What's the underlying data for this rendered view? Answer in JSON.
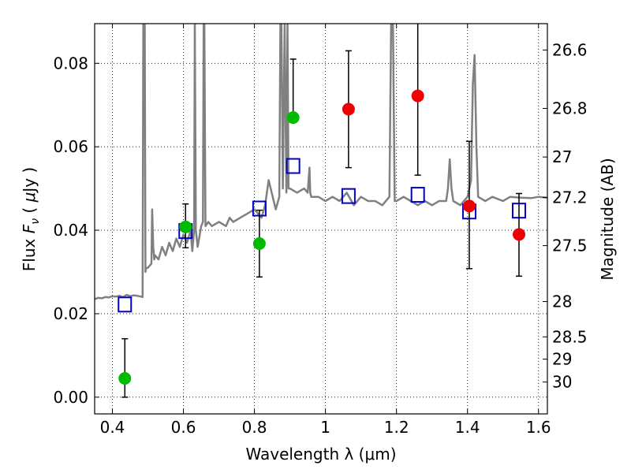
{
  "chart_data": {
    "type": "scatter",
    "xlabel": "Wavelength  λ (μm)",
    "ylabel": "Flux  F_ν  ( μJy )",
    "ylabel_right": "Magnitude (AB)",
    "xlim": [
      0.35,
      1.625
    ],
    "ylim": [
      -0.004,
      0.0895
    ],
    "x_ticks": [
      0.4,
      0.6,
      0.8,
      1.0,
      1.2,
      1.4,
      1.6
    ],
    "x_tick_labels": [
      "0.4",
      "0.6",
      "0.8",
      "1",
      "1.2",
      "1.4",
      "1.6"
    ],
    "y_ticks": [
      0.0,
      0.02,
      0.04,
      0.06,
      0.08
    ],
    "y_tick_labels": [
      "0.00",
      "0.02",
      "0.04",
      "0.06",
      "0.08"
    ],
    "right_ticks": [
      {
        "mag": 26.6,
        "label": "26.6"
      },
      {
        "mag": 26.8,
        "label": "26.8"
      },
      {
        "mag": 27.0,
        "label": "27"
      },
      {
        "mag": 27.2,
        "label": "27.2"
      },
      {
        "mag": 27.5,
        "label": "27.5"
      },
      {
        "mag": 28.0,
        "label": "28"
      },
      {
        "mag": 28.5,
        "label": "28.5"
      },
      {
        "mag": 29.0,
        "label": "29"
      },
      {
        "mag": 30.0,
        "label": "30"
      }
    ],
    "grid": true,
    "colors": {
      "spectrum": "#808080",
      "green": "#00bb00",
      "red": "#ee0000",
      "model": "#0000cc",
      "errorbar": "#000000"
    },
    "series": [
      {
        "kind": "photometry-green",
        "points": [
          {
            "x": 0.435,
            "y": 0.0045,
            "err_low": 0.0045,
            "err_high": 0.0095
          },
          {
            "x": 0.606,
            "y": 0.0408,
            "err_low": 0.005,
            "err_high": 0.0055
          },
          {
            "x": 0.814,
            "y": 0.0368,
            "err_low": 0.008,
            "err_high": 0.008
          },
          {
            "x": 0.909,
            "y": 0.067,
            "err_low": 0.0,
            "err_high": 0.014
          }
        ]
      },
      {
        "kind": "photometry-red",
        "points": [
          {
            "x": 1.065,
            "y": 0.069,
            "err_low": 0.014,
            "err_high": 0.014
          },
          {
            "x": 1.26,
            "y": 0.0722,
            "err_low": 0.019,
            "err_high": 0.018
          },
          {
            "x": 1.405,
            "y": 0.0458,
            "err_low": 0.015,
            "err_high": 0.0155
          },
          {
            "x": 1.545,
            "y": 0.039,
            "err_low": 0.01,
            "err_high": 0.0098
          }
        ]
      },
      {
        "kind": "model-photometry",
        "points": [
          {
            "x": 0.435,
            "y": 0.0222
          },
          {
            "x": 0.606,
            "y": 0.0398
          },
          {
            "x": 0.814,
            "y": 0.0452
          },
          {
            "x": 0.909,
            "y": 0.0554
          },
          {
            "x": 1.065,
            "y": 0.0482
          },
          {
            "x": 1.26,
            "y": 0.0485
          },
          {
            "x": 1.405,
            "y": 0.0445
          },
          {
            "x": 1.545,
            "y": 0.0447
          }
        ]
      },
      {
        "kind": "spectrum",
        "x": [
          0.35,
          0.36,
          0.37,
          0.38,
          0.39,
          0.4,
          0.41,
          0.42,
          0.43,
          0.44,
          0.45,
          0.46,
          0.47,
          0.48,
          0.485,
          0.487,
          0.489,
          0.491,
          0.493,
          0.495,
          0.5,
          0.51,
          0.512,
          0.515,
          0.518,
          0.52,
          0.53,
          0.54,
          0.55,
          0.56,
          0.57,
          0.58,
          0.59,
          0.6,
          0.61,
          0.62,
          0.625,
          0.63,
          0.632,
          0.635,
          0.64,
          0.65,
          0.655,
          0.657,
          0.659,
          0.662,
          0.67,
          0.68,
          0.7,
          0.72,
          0.73,
          0.74,
          0.76,
          0.78,
          0.8,
          0.81,
          0.82,
          0.83,
          0.84,
          0.86,
          0.87,
          0.873,
          0.876,
          0.88,
          0.885,
          0.89,
          0.893,
          0.896,
          0.9,
          0.92,
          0.94,
          0.95,
          0.955,
          0.957,
          0.96,
          0.98,
          1.0,
          1.02,
          1.04,
          1.06,
          1.08,
          1.1,
          1.12,
          1.14,
          1.16,
          1.18,
          1.185,
          1.19,
          1.195,
          1.2,
          1.22,
          1.24,
          1.26,
          1.28,
          1.3,
          1.32,
          1.34,
          1.345,
          1.35,
          1.355,
          1.36,
          1.38,
          1.4,
          1.41,
          1.415,
          1.42,
          1.425,
          1.43,
          1.45,
          1.47,
          1.5,
          1.52,
          1.55,
          1.58,
          1.6,
          1.625
        ],
        "y": [
          0.0235,
          0.0238,
          0.0237,
          0.024,
          0.0239,
          0.0242,
          0.0241,
          0.0243,
          0.024,
          0.0245,
          0.0242,
          0.0244,
          0.0243,
          0.0241,
          0.024,
          0.0895,
          0.0895,
          0.0895,
          0.03,
          0.031,
          0.031,
          0.032,
          0.045,
          0.036,
          0.033,
          0.034,
          0.033,
          0.036,
          0.034,
          0.037,
          0.035,
          0.038,
          0.036,
          0.039,
          0.037,
          0.04,
          0.035,
          0.04,
          0.0895,
          0.04,
          0.036,
          0.041,
          0.042,
          0.0895,
          0.0895,
          0.041,
          0.042,
          0.041,
          0.042,
          0.041,
          0.043,
          0.042,
          0.043,
          0.044,
          0.045,
          0.044,
          0.043,
          0.046,
          0.052,
          0.045,
          0.048,
          0.0895,
          0.0895,
          0.05,
          0.0895,
          0.049,
          0.0895,
          0.05,
          0.05,
          0.049,
          0.05,
          0.049,
          0.055,
          0.049,
          0.048,
          0.048,
          0.047,
          0.048,
          0.047,
          0.049,
          0.046,
          0.048,
          0.047,
          0.047,
          0.046,
          0.048,
          0.0895,
          0.0895,
          0.047,
          0.047,
          0.048,
          0.047,
          0.046,
          0.047,
          0.046,
          0.047,
          0.047,
          0.05,
          0.057,
          0.05,
          0.047,
          0.046,
          0.048,
          0.052,
          0.075,
          0.082,
          0.06,
          0.048,
          0.047,
          0.048,
          0.047,
          0.048,
          0.0478,
          0.0477,
          0.048,
          0.0478
        ]
      }
    ]
  }
}
